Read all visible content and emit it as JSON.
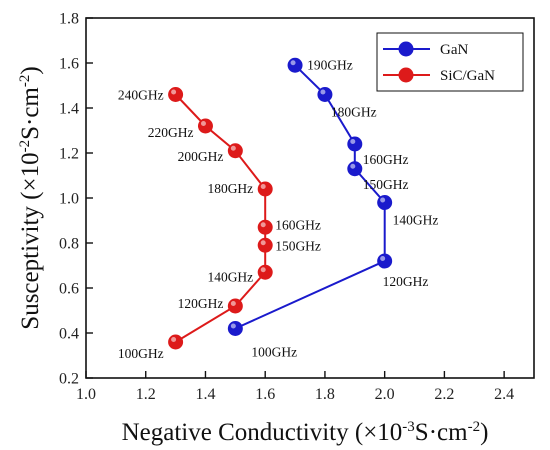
{
  "chart_data": {
    "type": "line",
    "xlabel_main": "Negative Conductivity (×10",
    "xlabel_exp": "-3",
    "xlabel_tail": "S·cm",
    "xlabel_tail_exp": "-2",
    "xlabel_close": ")",
    "ylabel_main": "Susceptivity (×10",
    "ylabel_exp": "-2",
    "ylabel_tail": "S·cm",
    "ylabel_tail_exp": "-2",
    "ylabel_close": ")",
    "xlim": [
      1.0,
      2.5
    ],
    "ylim": [
      0.2,
      1.8
    ],
    "xticks": [
      "1.0",
      "1.2",
      "1.4",
      "1.6",
      "1.8",
      "2.0",
      "2.2",
      "2.4"
    ],
    "yticks": [
      "0.2",
      "0.4",
      "0.6",
      "0.8",
      "1.0",
      "1.2",
      "1.4",
      "1.6",
      "1.8"
    ],
    "legend_position": "top-right",
    "series": [
      {
        "name": "GaN",
        "color": "#1a1acc",
        "points": [
          {
            "x": 1.5,
            "y": 0.42,
            "label": "100GHz"
          },
          {
            "x": 2.0,
            "y": 0.72,
            "label": "120GHz"
          },
          {
            "x": 2.0,
            "y": 0.98,
            "label": "140GHz"
          },
          {
            "x": 1.9,
            "y": 1.13,
            "label": "150GHz"
          },
          {
            "x": 1.9,
            "y": 1.24,
            "label": "160GHz"
          },
          {
            "x": 1.8,
            "y": 1.46,
            "label": "180GHz"
          },
          {
            "x": 1.7,
            "y": 1.59,
            "label": "190GHz"
          }
        ]
      },
      {
        "name": "SiC/GaN",
        "color": "#dd1a1a",
        "points": [
          {
            "x": 1.3,
            "y": 0.36,
            "label": "100GHz"
          },
          {
            "x": 1.5,
            "y": 0.52,
            "label": "120GHz"
          },
          {
            "x": 1.6,
            "y": 0.67,
            "label": "140GHz"
          },
          {
            "x": 1.6,
            "y": 0.79,
            "label": "150GHz"
          },
          {
            "x": 1.6,
            "y": 0.87,
            "label": "160GHz"
          },
          {
            "x": 1.6,
            "y": 1.04,
            "label": "180GHz"
          },
          {
            "x": 1.5,
            "y": 1.21,
            "label": "200GHz"
          },
          {
            "x": 1.4,
            "y": 1.32,
            "label": "220GHz"
          },
          {
            "x": 1.3,
            "y": 1.46,
            "label": "240GHz"
          }
        ]
      }
    ]
  }
}
